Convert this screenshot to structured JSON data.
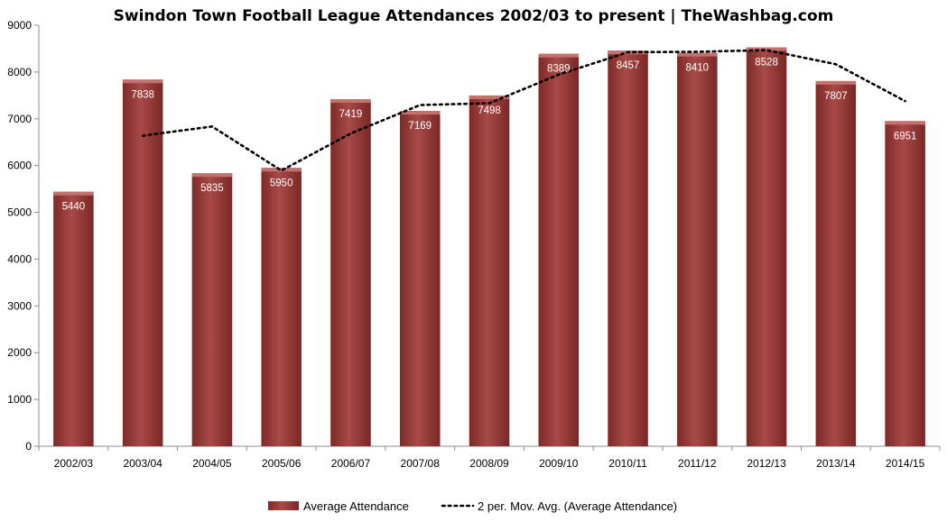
{
  "chart_data": {
    "type": "bar",
    "title": "Swindon Town Football League Attendances 2002/03 to present | TheWashbag.com",
    "xlabel": "",
    "ylabel": "",
    "ylim": [
      0,
      9000
    ],
    "yticks": [
      0,
      1000,
      2000,
      3000,
      4000,
      5000,
      6000,
      7000,
      8000,
      9000
    ],
    "grid": false,
    "legend_position": "bottom",
    "categories": [
      "2002/03",
      "2003/04",
      "2004/05",
      "2005/06",
      "2006/07",
      "2007/08",
      "2008/09",
      "2009/10",
      "2010/11",
      "2011/12",
      "2012/13",
      "2013/14",
      "2014/15"
    ],
    "series": [
      {
        "name": "Average Attendance",
        "type": "bar",
        "color": "#9B3A38",
        "values": [
          5440,
          7838,
          5835,
          5950,
          7419,
          7169,
          7498,
          8389,
          8457,
          8410,
          8528,
          7807,
          6951
        ],
        "labels": [
          "5440",
          "7838",
          "5835",
          "5950",
          "7419",
          "7169",
          "7498",
          "8389",
          "8457",
          "8410",
          "8528",
          "7807",
          "6951"
        ]
      },
      {
        "name": "2 per. Mov. Avg. (Average Attendance)",
        "type": "line",
        "style": "dotted",
        "color": "#000000",
        "values": [
          null,
          6639,
          6836.5,
          5892.5,
          6684.5,
          7294,
          7333.5,
          7943.5,
          8423,
          8433.5,
          8469,
          8167.5,
          7379
        ]
      }
    ]
  }
}
